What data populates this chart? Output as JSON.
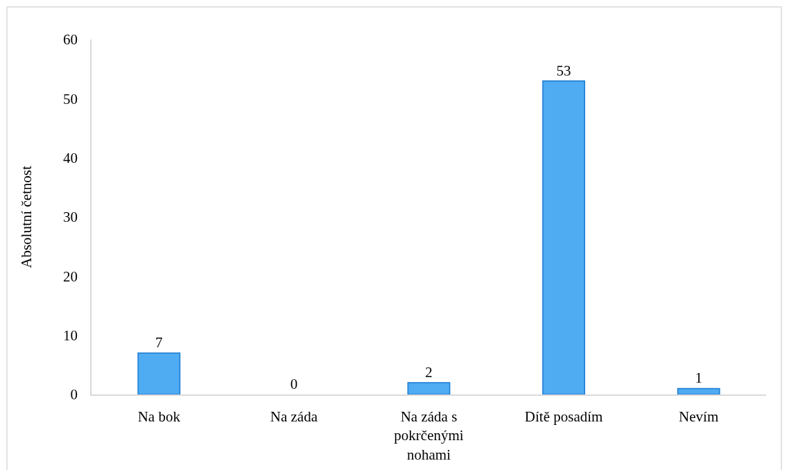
{
  "chart_data": {
    "type": "bar",
    "ylabel": "Absolutní četnost",
    "categories": [
      "Na bok",
      "Na záda",
      "Na záda s pokrčenými nohami",
      "Dítě posadím",
      "Nevím"
    ],
    "values": [
      7,
      0,
      2,
      53,
      1
    ],
    "color": "#4fabf2",
    "ylim": [
      0,
      60
    ],
    "yticks": [
      0,
      10,
      20,
      30,
      40,
      50,
      60
    ],
    "data_labels": true
  }
}
